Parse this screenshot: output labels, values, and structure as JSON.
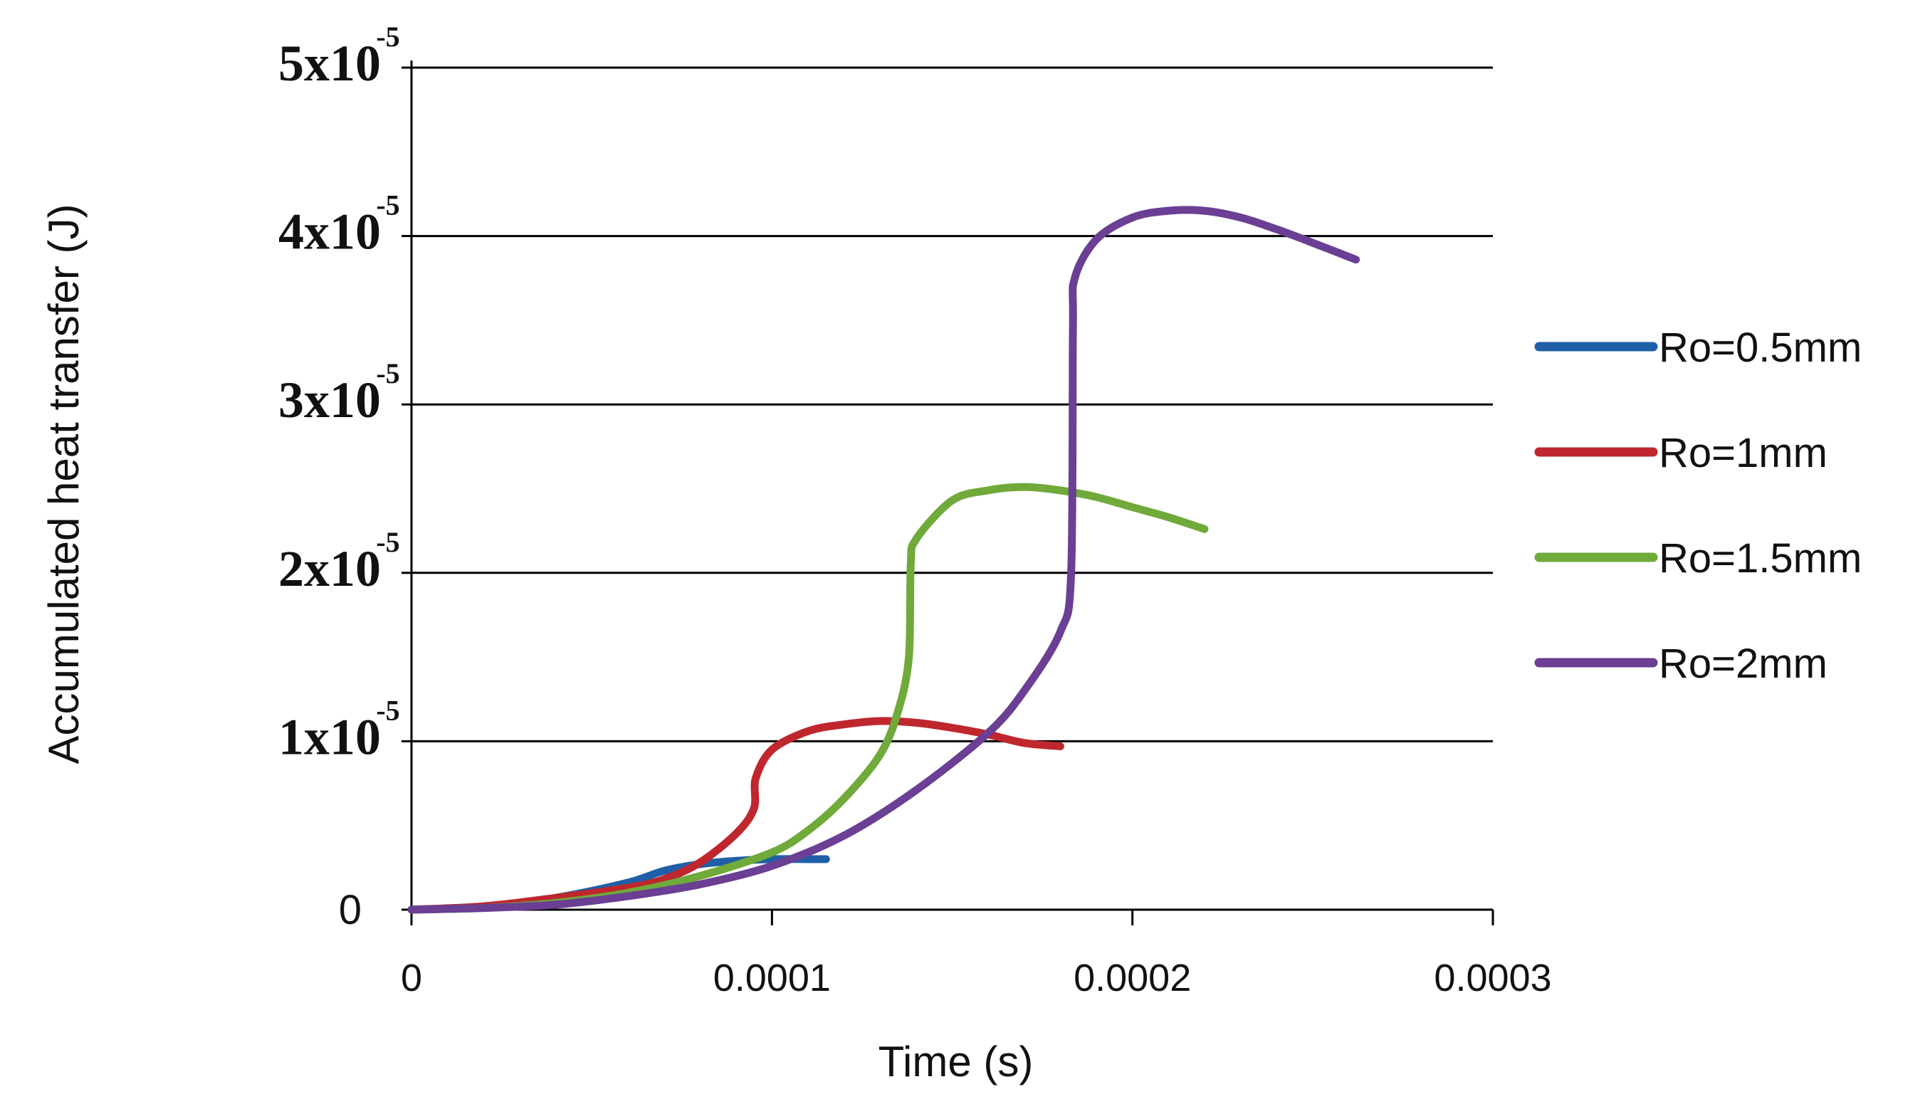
{
  "chart_data": {
    "type": "line",
    "title": "",
    "xlabel": "Time (s)",
    "ylabel": "Accumulated heat transfer (J)",
    "xlim": [
      0,
      0.0003
    ],
    "ylim": [
      0,
      5e-05
    ],
    "grid": true,
    "legend_position": "right",
    "x_ticks": [
      {
        "value": 0,
        "label": "0"
      },
      {
        "value": 0.0001,
        "label": "0.0001"
      },
      {
        "value": 0.0002,
        "label": "0.0002"
      },
      {
        "value": 0.0003,
        "label": "0.0003"
      }
    ],
    "y_ticks": [
      {
        "value": 0,
        "label": "0"
      },
      {
        "value": 1e-05,
        "label": "1x10",
        "exp": "-5"
      },
      {
        "value": 2e-05,
        "label": "2x10",
        "exp": "-5"
      },
      {
        "value": 3e-05,
        "label": "3x10",
        "exp": "-5"
      },
      {
        "value": 4e-05,
        "label": "4x10",
        "exp": "-5"
      },
      {
        "value": 5e-05,
        "label": "5x10",
        "exp": "-5"
      }
    ],
    "series": [
      {
        "name": "Ro=0.5mm",
        "color": "#1f5fa6",
        "x": [
          0,
          2e-05,
          4e-05,
          6e-05,
          7e-05,
          8e-05,
          9e-05,
          0.0001,
          0.00011,
          0.000115
        ],
        "y": [
          0,
          2e-07,
          7e-07,
          1.6e-06,
          2.3e-06,
          2.7e-06,
          2.9e-06,
          3e-06,
          3e-06,
          3e-06
        ]
      },
      {
        "name": "Ro=1mm",
        "color": "#c0262d",
        "x": [
          0,
          2e-05,
          4e-05,
          6e-05,
          7e-05,
          8e-05,
          9e-05,
          9.5e-05,
          9.55e-05,
          0.0001,
          0.00011,
          0.00012,
          0.00013,
          0.00014,
          0.00015,
          0.00016,
          0.00017,
          0.00018
        ],
        "y": [
          0,
          2e-07,
          7e-07,
          1.3e-06,
          1.8e-06,
          2.8e-06,
          4.5e-06,
          6e-06,
          7.8e-06,
          9.5e-06,
          1.06e-05,
          1.1e-05,
          1.12e-05,
          1.11e-05,
          1.08e-05,
          1.04e-05,
          9.9e-06,
          9.7e-06
        ]
      },
      {
        "name": "Ro=1.5mm",
        "color": "#6faa3a",
        "x": [
          0,
          2e-05,
          4e-05,
          6e-05,
          8e-05,
          0.0001,
          0.00011,
          0.00012,
          0.00013,
          0.000135,
          0.000138,
          0.0001385,
          0.00014,
          0.00015,
          0.00016,
          0.00017,
          0.00018,
          0.00019,
          0.0002,
          0.00021,
          0.00022
        ],
        "y": [
          0,
          1e-07,
          4e-07,
          1e-06,
          2e-06,
          3.4e-06,
          4.7e-06,
          6.6e-06,
          9.2e-06,
          1.18e-05,
          1.5e-05,
          2.05e-05,
          2.2e-05,
          2.43e-05,
          2.49e-05,
          2.51e-05,
          2.49e-05,
          2.45e-05,
          2.39e-05,
          2.33e-05,
          2.26e-05
        ]
      },
      {
        "name": "Ro=2mm",
        "color": "#6a3f94",
        "x": [
          0,
          2e-05,
          4e-05,
          6e-05,
          8e-05,
          0.0001,
          0.00012,
          0.00014,
          0.00016,
          0.00017,
          0.00018,
          0.000183,
          0.0001835,
          0.000184,
          0.00019,
          0.0002,
          0.00021,
          0.00022,
          0.00023,
          0.00024,
          0.00025,
          0.000262
        ],
        "y": [
          0,
          1e-07,
          3e-07,
          8e-07,
          1.5e-06,
          2.6e-06,
          4.4e-06,
          7.1e-06,
          1.05e-05,
          1.3e-05,
          1.65e-05,
          2e-05,
          3.45e-05,
          3.75e-05,
          3.98e-05,
          4.11e-05,
          4.15e-05,
          4.15e-05,
          4.11e-05,
          4.04e-05,
          3.96e-05,
          3.86e-05
        ]
      }
    ]
  }
}
